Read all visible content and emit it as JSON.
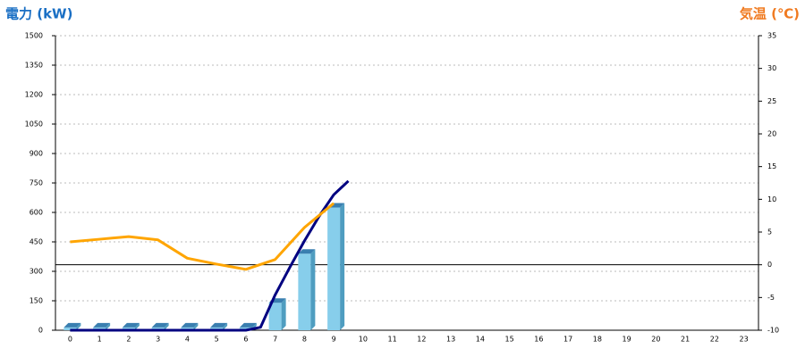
{
  "chart_data": {
    "type": "bar-line",
    "y_title": "電力 (kW)",
    "y2_title": "気温 (℃)",
    "categories": [
      "0",
      "1",
      "2",
      "3",
      "4",
      "5",
      "6",
      "7",
      "8",
      "9",
      "10",
      "11",
      "12",
      "13",
      "14",
      "15",
      "16",
      "17",
      "18",
      "19",
      "20",
      "21",
      "22",
      "23"
    ],
    "ylim": [
      0,
      1500
    ],
    "yticks": [
      0,
      150,
      300,
      450,
      600,
      750,
      900,
      1050,
      1200,
      1350,
      1500
    ],
    "y2lim": [
      -10,
      35
    ],
    "y2ticks": [
      -10,
      -5,
      0,
      5,
      10,
      15,
      20,
      25,
      30,
      35
    ],
    "grid": true,
    "bars": {
      "color": "#87ceeb",
      "values": [
        14,
        14,
        14,
        14,
        14,
        14,
        14,
        140,
        390,
        625,
        null,
        null,
        null,
        null,
        null,
        null,
        null,
        null,
        null,
        null,
        null,
        null,
        null,
        null
      ]
    },
    "line": {
      "color": "#000080",
      "x": [
        0,
        1,
        2,
        3,
        4,
        5,
        6,
        6.5,
        7,
        7.5,
        8,
        8.5,
        9,
        9.5
      ],
      "values": [
        0,
        0,
        0,
        0,
        0,
        0,
        0,
        15,
        180,
        320,
        455,
        580,
        690,
        760
      ]
    },
    "temp": {
      "color": "#ffa500",
      "axis": "y2",
      "values": [
        3.5,
        3.9,
        4.3,
        3.8,
        1.0,
        0.1,
        -0.7,
        0.8,
        5.7,
        9.4,
        null,
        null,
        null,
        null,
        null,
        null,
        null,
        null,
        null,
        null,
        null,
        null,
        null,
        null
      ]
    }
  }
}
